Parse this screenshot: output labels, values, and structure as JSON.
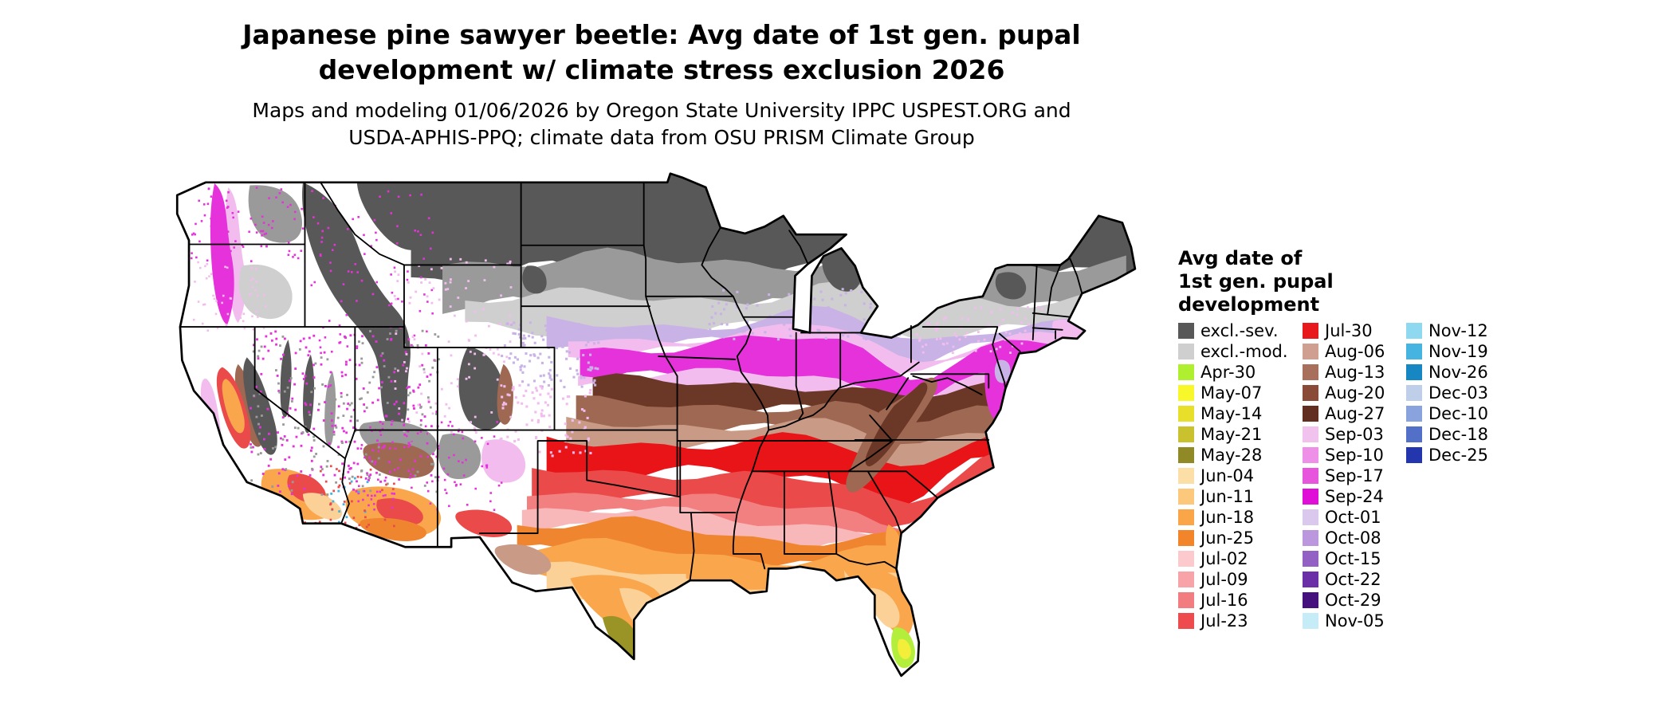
{
  "header": {
    "title_line1": "Japanese pine sawyer beetle: Avg date of 1st gen. pupal",
    "title_line2": "development w/ climate stress exclusion 2026",
    "subtitle_line1": "Maps and modeling 01/06/2026 by Oregon State University IPPC USPEST.ORG and",
    "subtitle_line2": "USDA-APHIS-PPQ; climate data from OSU PRISM Climate Group"
  },
  "legend": {
    "title_lines": [
      "Avg date of",
      "1st gen. pupal",
      "development"
    ],
    "columns": [
      [
        {
          "label": "excl.-sev.",
          "color": "#585858"
        },
        {
          "label": "excl.-mod.",
          "color": "#cfcfcf"
        },
        {
          "label": "Apr-30",
          "color": "#b0ef2f"
        },
        {
          "label": "May-07",
          "color": "#f7f72a"
        },
        {
          "label": "May-14",
          "color": "#e8df2b"
        },
        {
          "label": "May-21",
          "color": "#c9c22e"
        },
        {
          "label": "May-28",
          "color": "#8f8a26"
        },
        {
          "label": "Jun-04",
          "color": "#fcdfa6"
        },
        {
          "label": "Jun-11",
          "color": "#fcc97c"
        },
        {
          "label": "Jun-18",
          "color": "#faa648"
        },
        {
          "label": "Jun-25",
          "color": "#f28429"
        },
        {
          "label": "Jul-02",
          "color": "#fcc9cc"
        },
        {
          "label": "Jul-09",
          "color": "#f7a3a8"
        },
        {
          "label": "Jul-16",
          "color": "#f27d80"
        },
        {
          "label": "Jul-23",
          "color": "#ee4b4e"
        }
      ],
      [
        {
          "label": "Jul-30",
          "color": "#e8191c"
        },
        {
          "label": "Aug-06",
          "color": "#cfa091"
        },
        {
          "label": "Aug-13",
          "color": "#a8705c"
        },
        {
          "label": "Aug-20",
          "color": "#8a4a38"
        },
        {
          "label": "Aug-27",
          "color": "#632e22"
        },
        {
          "label": "Sep-03",
          "color": "#f2c2ef"
        },
        {
          "label": "Sep-10",
          "color": "#ee8fe8"
        },
        {
          "label": "Sep-17",
          "color": "#e855dd"
        },
        {
          "label": "Sep-24",
          "color": "#e00fd8"
        },
        {
          "label": "Oct-01",
          "color": "#dbc9ed"
        },
        {
          "label": "Oct-08",
          "color": "#bb97dd"
        },
        {
          "label": "Oct-15",
          "color": "#9361c4"
        },
        {
          "label": "Oct-22",
          "color": "#6b2fa8"
        },
        {
          "label": "Oct-29",
          "color": "#45127d"
        },
        {
          "label": "Nov-05",
          "color": "#c6ecf7"
        }
      ],
      [
        {
          "label": "Nov-12",
          "color": "#8fd9f0"
        },
        {
          "label": "Nov-19",
          "color": "#45b4e0"
        },
        {
          "label": "Nov-26",
          "color": "#1787c4"
        },
        {
          "label": "Dec-03",
          "color": "#bfcfea"
        },
        {
          "label": "Dec-10",
          "color": "#88a3dd"
        },
        {
          "label": "Dec-18",
          "color": "#5270c8"
        },
        {
          "label": "Dec-25",
          "color": "#2436ad"
        }
      ]
    ]
  },
  "map": {
    "description": "Contiguous United States choropleth of average date of first generation pupal development",
    "outline_color": "#000000",
    "colors": {
      "white": "#ffffff",
      "gray_dark": "#585858",
      "gray_mid": "#9a9a9a",
      "gray_light": "#cfcfcf",
      "lavender": "#c9b2e6",
      "sep_pale": "#f2bdee",
      "magenta": "#e632da",
      "brown_tan": "#c99b87",
      "brown_mid": "#9e6852",
      "brown_dark": "#6b3727",
      "red_bright": "#e81417",
      "red_mid": "#ea4a4a",
      "salmon": "#f28080",
      "pink": "#f8b8ba",
      "orange_dark": "#f08530",
      "orange": "#faa64c",
      "tan": "#fbd198",
      "olive": "#9a9326",
      "green": "#b4ee3c",
      "yellow": "#f2ee3a",
      "nov_cyan": "#45b4e0"
    }
  }
}
